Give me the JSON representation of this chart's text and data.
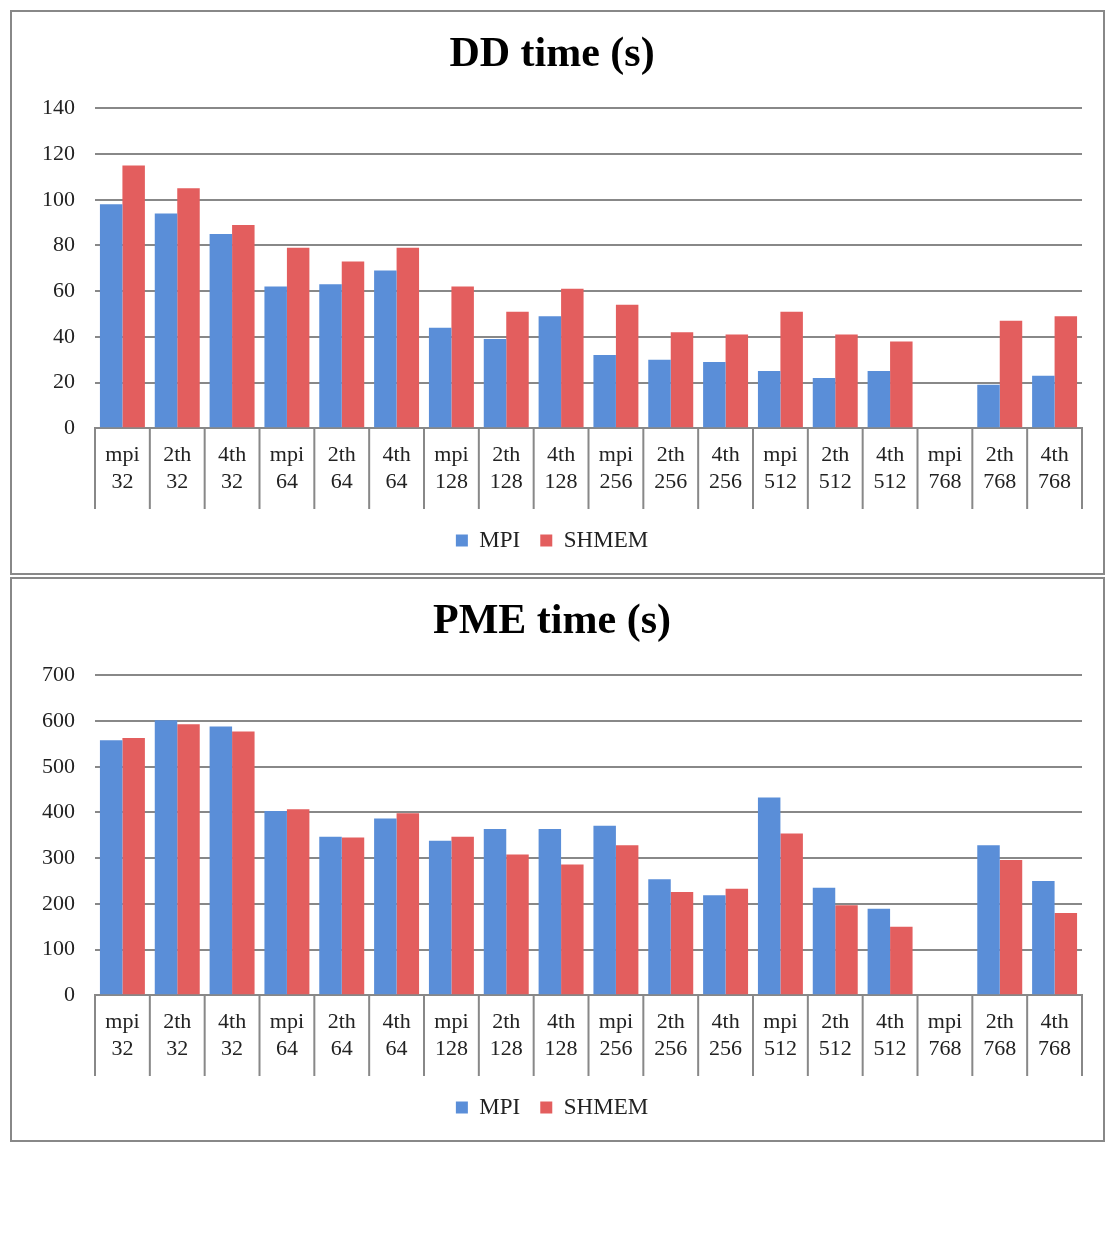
{
  "chart_data": [
    {
      "type": "bar",
      "title": "DD time (s)",
      "categories": [
        "mpi 32",
        "2th 32",
        "4th 32",
        "mpi 64",
        "2th 64",
        "4th 64",
        "mpi 128",
        "2th 128",
        "4th 128",
        "mpi 256",
        "2th 256",
        "4th 256",
        "mpi 512",
        "2th 512",
        "4th 512",
        "mpi 768",
        "2th 768",
        "4th 768"
      ],
      "series": [
        {
          "name": "MPI",
          "color": "#5a8ed8",
          "values": [
            98,
            94,
            85,
            62,
            63,
            69,
            44,
            39,
            49,
            32,
            30,
            29,
            25,
            22,
            25,
            null,
            19,
            23
          ]
        },
        {
          "name": "SHMEM",
          "color": "#e35e5e",
          "values": [
            115,
            105,
            89,
            79,
            73,
            79,
            62,
            51,
            61,
            54,
            42,
            41,
            51,
            41,
            38,
            null,
            47,
            49
          ]
        }
      ],
      "ylim": [
        0,
        140
      ],
      "yticks": [
        0,
        20,
        40,
        60,
        80,
        100,
        120,
        140
      ],
      "grid": "y",
      "legend": "bottom"
    },
    {
      "type": "bar",
      "title": "PME time (s)",
      "categories": [
        "mpi 32",
        "2th 32",
        "4th 32",
        "mpi 64",
        "2th 64",
        "4th 64",
        "mpi 128",
        "2th 128",
        "4th 128",
        "mpi 256",
        "2th 256",
        "4th 256",
        "mpi 512",
        "2th 512",
        "4th 512",
        "mpi 768",
        "2th 768",
        "4th 768"
      ],
      "series": [
        {
          "name": "MPI",
          "color": "#5a8ed8",
          "values": [
            558,
            602,
            588,
            403,
            347,
            387,
            338,
            364,
            364,
            371,
            254,
            219,
            433,
            235,
            189,
            null,
            328,
            250
          ]
        },
        {
          "name": "SHMEM",
          "color": "#e35e5e",
          "values": [
            563,
            593,
            577,
            407,
            345,
            398,
            347,
            308,
            286,
            328,
            226,
            233,
            354,
            197,
            150,
            null,
            296,
            180
          ]
        }
      ],
      "ylim": [
        0,
        700
      ],
      "yticks": [
        0,
        100,
        200,
        300,
        400,
        500,
        600,
        700
      ],
      "grid": "y",
      "legend": "bottom"
    }
  ]
}
